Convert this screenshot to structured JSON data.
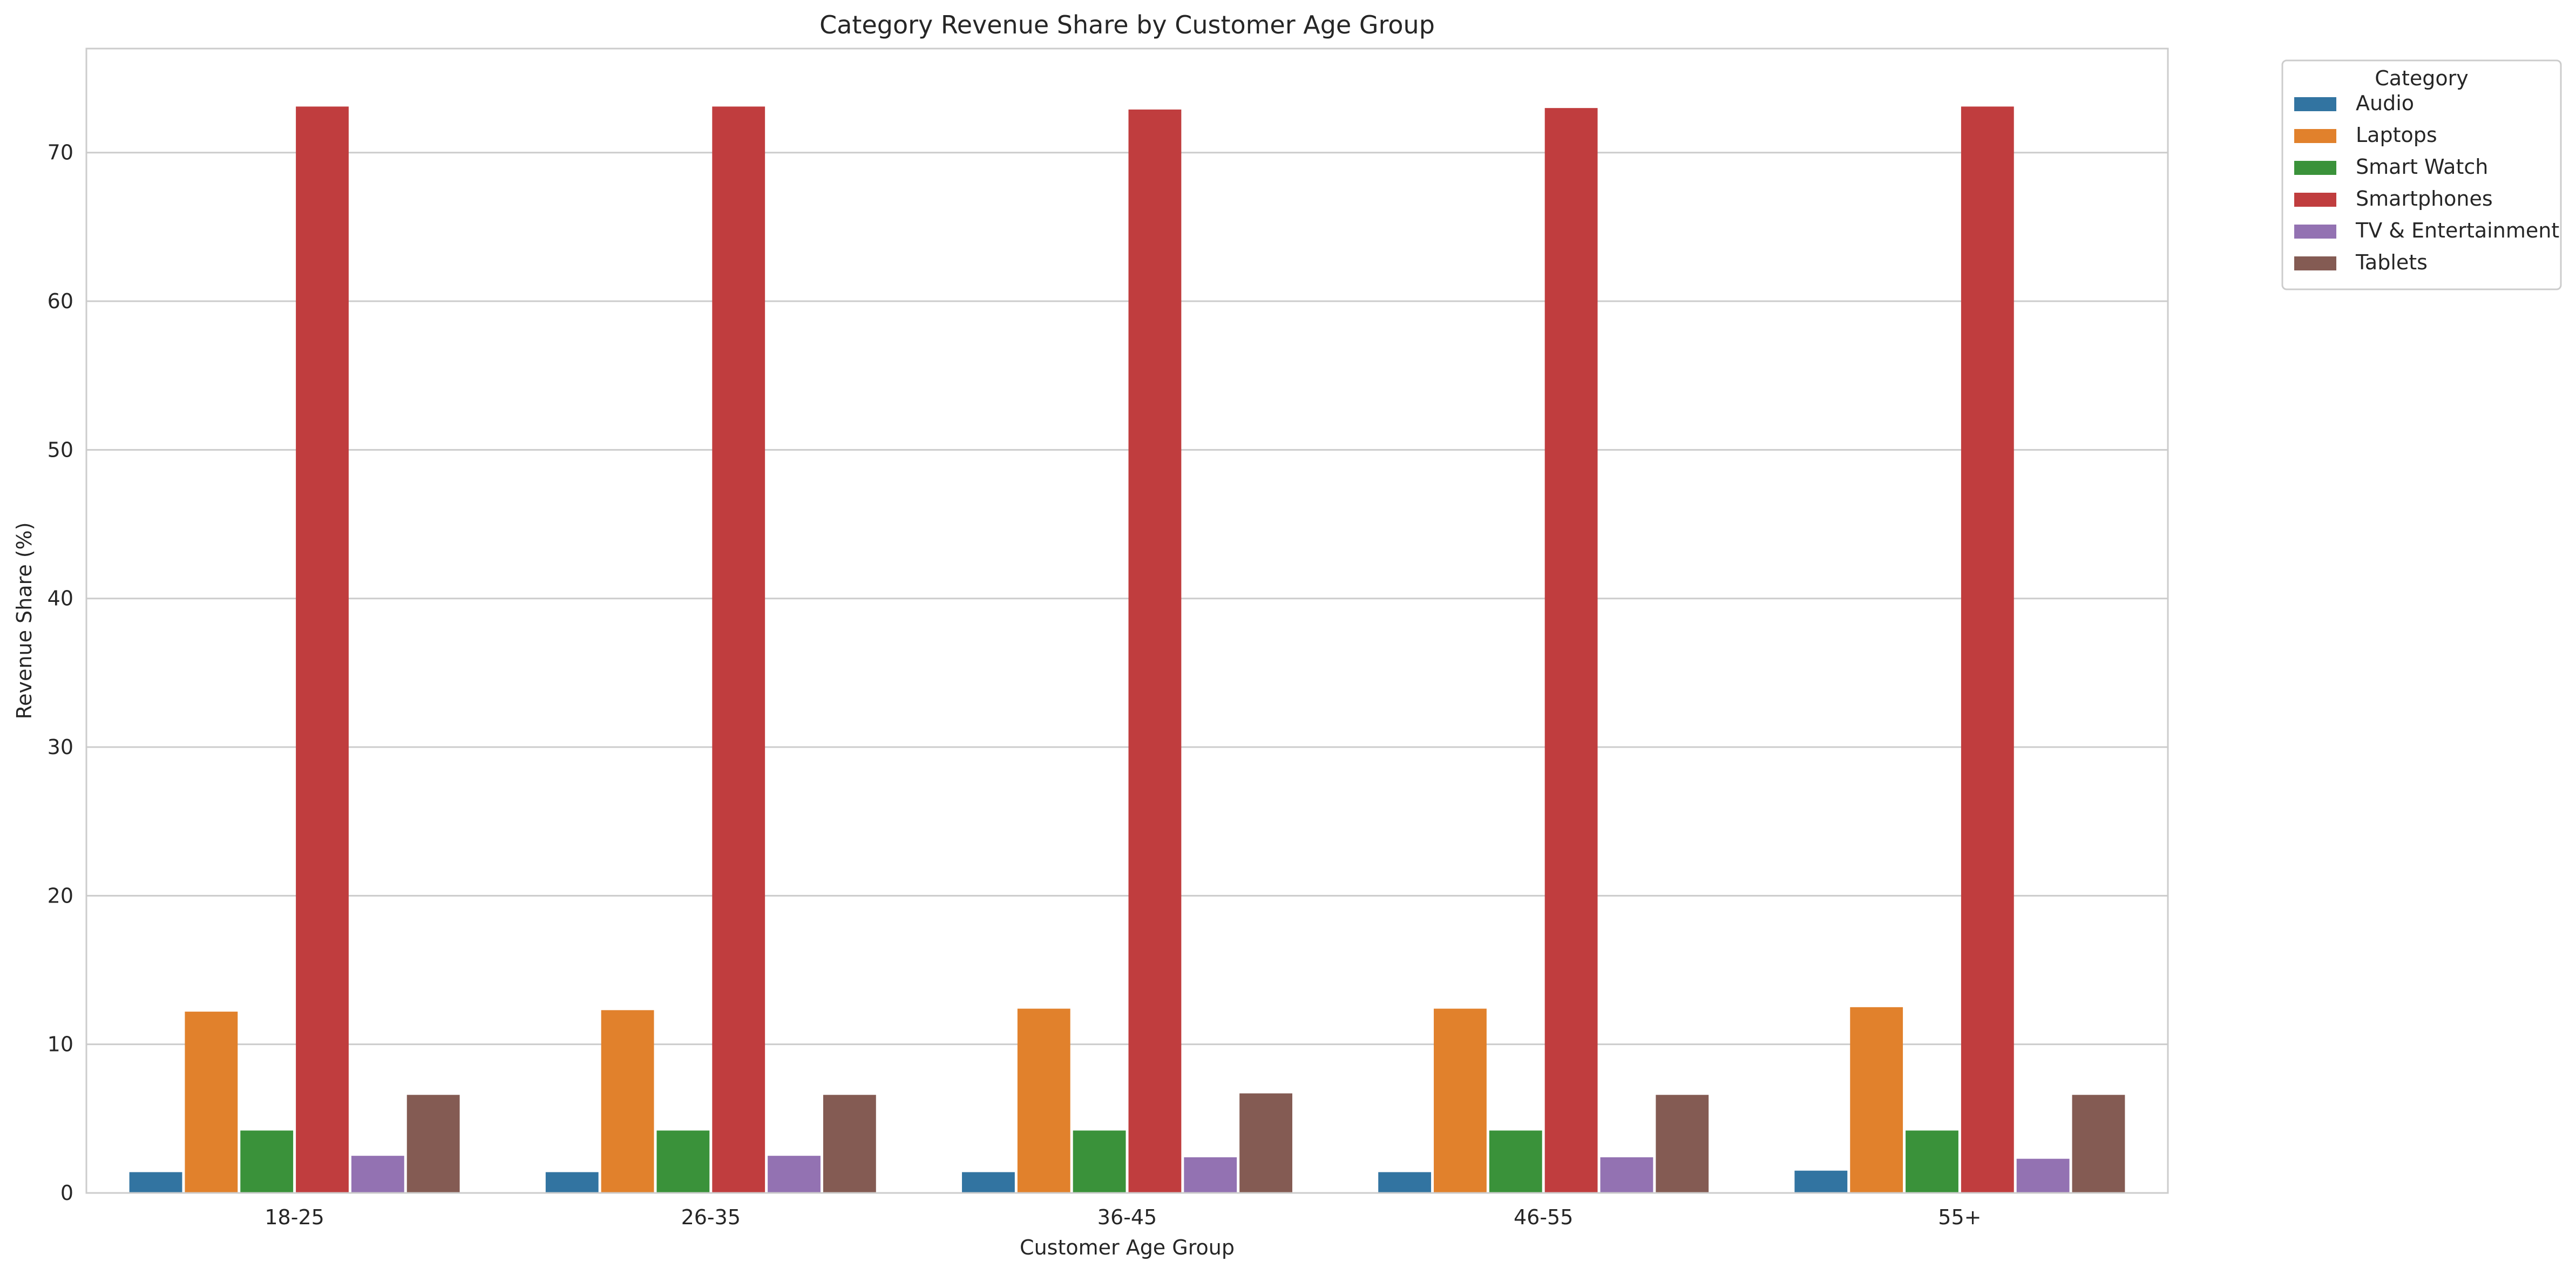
{
  "chart_data": {
    "type": "bar",
    "title": "Category Revenue Share by Customer Age Group",
    "xlabel": "Customer Age Group",
    "ylabel": "Revenue Share (%)",
    "ylim": [
      0,
      77
    ],
    "yticks": [
      0,
      10,
      20,
      30,
      40,
      50,
      60,
      70
    ],
    "grid": "horizontal",
    "legend_title": "Category",
    "legend_position": "outside-top-right",
    "categories": [
      "18-25",
      "26-35",
      "36-45",
      "46-55",
      "55+"
    ],
    "series": [
      {
        "name": "Audio",
        "color": "#3274a1",
        "values": [
          1.4,
          1.4,
          1.4,
          1.4,
          1.5
        ]
      },
      {
        "name": "Laptops",
        "color": "#e1812c",
        "values": [
          12.2,
          12.3,
          12.4,
          12.4,
          12.5
        ]
      },
      {
        "name": "Smart Watch",
        "color": "#3a923a",
        "values": [
          4.2,
          4.2,
          4.2,
          4.2,
          4.2
        ]
      },
      {
        "name": "Smartphones",
        "color": "#c03d3e",
        "values": [
          73.1,
          73.1,
          72.9,
          73.0,
          73.1
        ]
      },
      {
        "name": "TV & Entertainment",
        "color": "#9372b2",
        "values": [
          2.5,
          2.5,
          2.4,
          2.4,
          2.3
        ]
      },
      {
        "name": "Tablets",
        "color": "#845b53",
        "values": [
          6.6,
          6.6,
          6.7,
          6.6,
          6.6
        ]
      }
    ]
  }
}
